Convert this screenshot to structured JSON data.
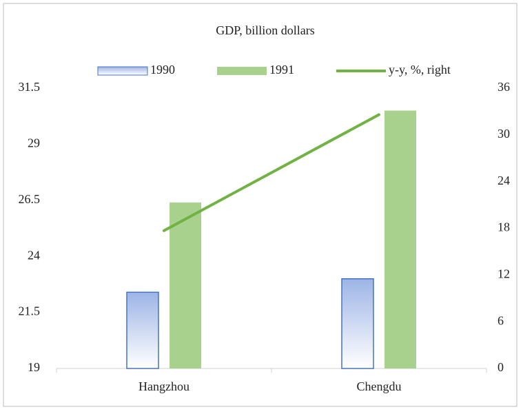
{
  "chart_data": {
    "type": "bar",
    "title": "GDP,  billion  dollars",
    "categories": [
      "Hangzhou",
      "Chengdu"
    ],
    "series": [
      {
        "name": "1990",
        "color": "#4472c4",
        "values": [
          22.4,
          23.0
        ]
      },
      {
        "name": "1991",
        "color": "#a9d18e",
        "values": [
          26.4,
          30.5
        ]
      },
      {
        "name": "y-y, %, right",
        "color": "#70b244",
        "values": [
          17.7,
          32.6
        ],
        "axis": "y2",
        "type": "line"
      }
    ],
    "ylim": [
      19,
      31.5
    ],
    "yticks": [
      19,
      21.5,
      24,
      26.5,
      29,
      31.5
    ],
    "y2lim": [
      0,
      36
    ],
    "y2ticks": [
      0,
      6,
      12,
      18,
      24,
      30,
      36
    ],
    "grid": false,
    "legend": "top"
  }
}
